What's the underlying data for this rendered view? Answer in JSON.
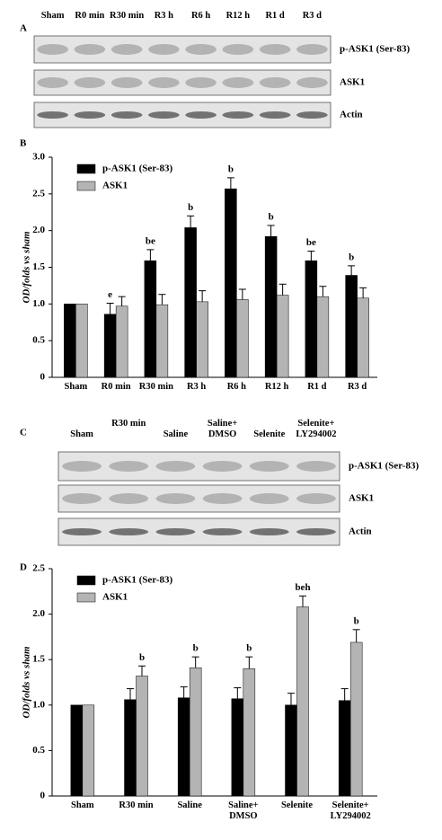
{
  "blots": [
    {
      "panel": "A",
      "lanes": [
        "Sham",
        "R0 min",
        "R30 min",
        "R3 h",
        "R6 h",
        "R12 h",
        "R1 d",
        "R3 d"
      ],
      "rows": [
        "p-ASK1 (Ser-83)",
        "ASK1",
        "Actin"
      ]
    },
    {
      "panel": "C",
      "lanes": [
        "Sham",
        "R30 min",
        "Saline",
        "Saline+ DMSO",
        "Selenite",
        "Selenite+ LY294002"
      ],
      "rows": [
        "p-ASK1 (Ser-83)",
        "ASK1",
        "Actin"
      ]
    }
  ],
  "chart_data": [
    {
      "type": "bar",
      "panel": "B",
      "y_label": "OD/folds vs sham",
      "categories": [
        "Sham",
        "R0 min",
        "R30 min",
        "R3 h",
        "R6 h",
        "R12 h",
        "R1 d",
        "R3 d"
      ],
      "series": [
        {
          "name": "p-ASK1 (Ser-83)",
          "color": "#000000",
          "values": [
            1.0,
            0.86,
            1.59,
            2.04,
            2.57,
            1.92,
            1.59,
            1.39
          ],
          "errors": [
            0,
            0.15,
            0.15,
            0.16,
            0.15,
            0.15,
            0.13,
            0.13
          ],
          "annotations": [
            null,
            "e",
            "be",
            "b",
            "b",
            "b",
            "be",
            "b"
          ]
        },
        {
          "name": "ASK1",
          "color": "#b4b4b4",
          "values": [
            1.0,
            0.97,
            0.99,
            1.03,
            1.06,
            1.12,
            1.1,
            1.08
          ],
          "errors": [
            0,
            0.13,
            0.14,
            0.15,
            0.14,
            0.15,
            0.14,
            0.14
          ],
          "annotations": [
            null,
            null,
            null,
            null,
            null,
            null,
            null,
            null
          ]
        }
      ],
      "ylim": [
        0,
        3
      ],
      "yticks": [
        0,
        0.5,
        {
          "value": 1,
          "label": "1.0"
        },
        1.5,
        {
          "value": 2,
          "label": "2.0"
        },
        2.5,
        {
          "value": 3,
          "label": "3.0"
        }
      ]
    },
    {
      "type": "bar",
      "panel": "D",
      "y_label": "OD/folds vs sham",
      "categories": [
        "Sham",
        "R30 min",
        "Saline",
        "Saline+ DMSO",
        "Selenite",
        "Selenite+ LY294002"
      ],
      "series": [
        {
          "name": "p-ASK1 (Ser-83)",
          "color": "#000000",
          "values": [
            1.0,
            1.06,
            1.08,
            1.07,
            1.0,
            1.05
          ],
          "errors": [
            0,
            0.12,
            0.12,
            0.12,
            0.13,
            0.13
          ],
          "annotations": [
            null,
            null,
            null,
            null,
            null,
            null
          ]
        },
        {
          "name": "ASK1",
          "color": "#b4b4b4",
          "values": [
            1.0,
            1.32,
            1.41,
            1.4,
            2.08,
            1.69
          ],
          "errors": [
            0,
            0.11,
            0.12,
            0.13,
            0.12,
            0.14
          ],
          "annotations": [
            null,
            "b",
            "b",
            "b",
            "beh",
            "b"
          ]
        }
      ],
      "ylim": [
        0,
        2.5
      ],
      "yticks": [
        0,
        0.5,
        {
          "value": 1,
          "label": "1.0"
        },
        1.5,
        {
          "value": 2,
          "label": "2.0"
        },
        2.5
      ]
    }
  ]
}
